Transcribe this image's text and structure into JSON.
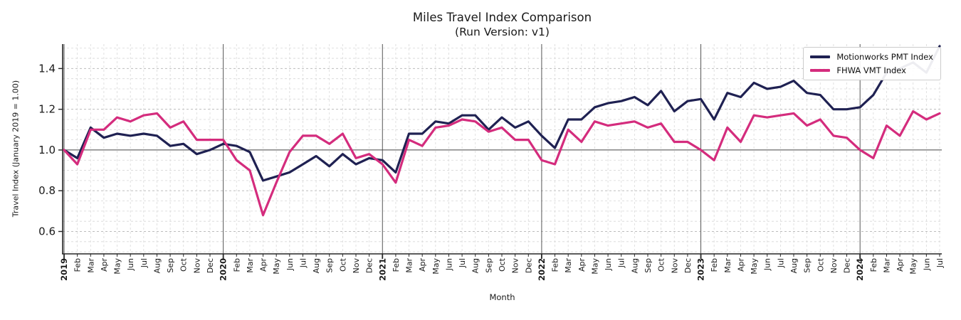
{
  "figure": {
    "title": "Miles Travel Index Comparison",
    "subtitle": "(Run Version: v1)",
    "xlabel": "Month",
    "ylabel": "Travel Index (January 2019 = 1.00)"
  },
  "legend": {
    "position": "upper right",
    "entries": [
      {
        "label": "Motionworks PMT Index",
        "color": "#1f2152"
      },
      {
        "label": "FHWA VMT Index",
        "color": "#d42c7d"
      }
    ]
  },
  "chart_data": {
    "type": "line",
    "title": "Miles Travel Index Comparison (Run Version: v1)",
    "xlabel": "Month",
    "ylabel": "Travel Index (January 2019 = 1.00)",
    "x": [
      "2019",
      "Feb",
      "Mar",
      "Apr",
      "May",
      "Jun",
      "Jul",
      "Aug",
      "Sep",
      "Oct",
      "Nov",
      "Dec",
      "2020",
      "Feb",
      "Mar",
      "Apr",
      "May",
      "Jun",
      "Jul",
      "Aug",
      "Sep",
      "Oct",
      "Nov",
      "Dec",
      "2021",
      "Feb",
      "Mar",
      "Apr",
      "May",
      "Jun",
      "Jul",
      "Aug",
      "Sep",
      "Oct",
      "Nov",
      "Dec",
      "2022",
      "Feb",
      "Mar",
      "Apr",
      "May",
      "Jun",
      "Jul",
      "Aug",
      "Sep",
      "Oct",
      "Nov",
      "Dec",
      "2023",
      "Feb",
      "Mar",
      "Apr",
      "May",
      "Jun",
      "Jul",
      "Aug",
      "Sep",
      "Oct",
      "Nov",
      "Dec",
      "2024",
      "Feb",
      "Mar",
      "Apr",
      "May",
      "Jun",
      "Jul"
    ],
    "year_tick_indices": [
      0,
      12,
      24,
      36,
      48,
      60
    ],
    "series": [
      {
        "name": "Motionworks PMT Index",
        "color": "#1f2152",
        "values": [
          1.0,
          0.96,
          1.11,
          1.06,
          1.08,
          1.07,
          1.08,
          1.07,
          1.02,
          1.03,
          0.98,
          1.0,
          1.03,
          1.02,
          0.99,
          0.85,
          0.87,
          0.89,
          0.93,
          0.97,
          0.92,
          0.98,
          0.93,
          0.96,
          0.95,
          0.89,
          1.08,
          1.08,
          1.14,
          1.13,
          1.17,
          1.17,
          1.1,
          1.16,
          1.11,
          1.14,
          1.07,
          1.01,
          1.15,
          1.15,
          1.21,
          1.23,
          1.24,
          1.26,
          1.22,
          1.29,
          1.19,
          1.24,
          1.25,
          1.15,
          1.28,
          1.26,
          1.33,
          1.3,
          1.31,
          1.34,
          1.28,
          1.27,
          1.2,
          1.2,
          1.21,
          1.27,
          1.38,
          1.4,
          1.43,
          1.38,
          1.51
        ]
      },
      {
        "name": "FHWA VMT Index",
        "color": "#d42c7d",
        "values": [
          1.0,
          0.93,
          1.1,
          1.1,
          1.16,
          1.14,
          1.17,
          1.18,
          1.11,
          1.14,
          1.05,
          1.05,
          1.05,
          0.95,
          0.9,
          0.68,
          0.84,
          0.99,
          1.07,
          1.07,
          1.03,
          1.08,
          0.96,
          0.98,
          0.93,
          0.84,
          1.05,
          1.02,
          1.11,
          1.12,
          1.15,
          1.14,
          1.09,
          1.11,
          1.05,
          1.05,
          0.95,
          0.93,
          1.1,
          1.04,
          1.14,
          1.12,
          1.13,
          1.14,
          1.11,
          1.13,
          1.04,
          1.04,
          1.0,
          0.95,
          1.11,
          1.04,
          1.17,
          1.16,
          1.17,
          1.18,
          1.12,
          1.15,
          1.07,
          1.06,
          1.0,
          0.96,
          1.12,
          1.07,
          1.19,
          1.15,
          1.18
        ]
      }
    ],
    "ylim": [
      0.49,
      1.52
    ],
    "yticks": [
      0.6,
      0.8,
      1.0,
      1.2,
      1.4
    ],
    "ytick_labels": [
      "0.6",
      "0.8",
      "1.0",
      "1.2",
      "1.4"
    ],
    "baseline": 1.0,
    "grid": {
      "horizontal_step": 0.05,
      "style": "dashed",
      "vertical": "every month, solid dark line at each year"
    },
    "legend_position": "upper right"
  }
}
